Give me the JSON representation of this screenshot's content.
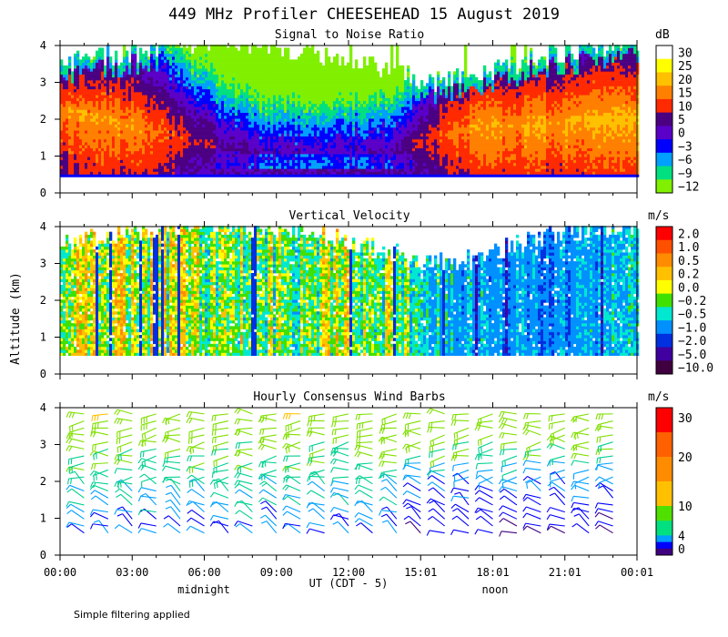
{
  "figure": {
    "title": "449 MHz Profiler CHEESEHEAD 15 August 2019",
    "y_axis_label": "Altitude (km)",
    "x_axis_label": "UT  (CDT - 5)",
    "day_labels": [
      "midnight",
      "noon"
    ],
    "footnote": "Simple filtering applied"
  },
  "chart_data": [
    {
      "type": "heatmap",
      "title": "Signal to Noise Ratio",
      "units": "dB",
      "x_tick_labels": [
        "00:00",
        "03:00",
        "06:00",
        "09:00",
        "12:00",
        "15:01",
        "18:01",
        "21:01",
        "00:01"
      ],
      "xlim_hours": [
        0,
        24
      ],
      "y_tick_labels": [
        "0",
        "1",
        "2",
        "3",
        "4"
      ],
      "ylim_km": [
        0,
        4
      ],
      "colorbar": {
        "labels": [
          "30",
          "25",
          "20",
          "15",
          "10",
          "5",
          "0",
          "−3",
          "−6",
          "−9",
          "−12"
        ],
        "colors": [
          "#ffffff",
          "#ffff00",
          "#ffc000",
          "#ff8000",
          "#ff2a00",
          "#4b0082",
          "#5a00c8",
          "#0000ff",
          "#00a0ff",
          "#00e080",
          "#80f000"
        ]
      },
      "lowest_gate_km": 0.5,
      "top_of_echo_km": [
        3.5,
        3.6,
        3.7,
        3.8,
        3.9,
        4.0,
        4.0,
        4.0,
        3.9,
        3.9,
        3.8,
        3.7,
        3.6,
        3.4,
        3.2,
        3.0,
        3.0,
        3.1,
        3.3,
        3.5,
        3.7,
        3.8,
        3.9,
        4.0,
        4.0
      ],
      "high_snr_layer_km": [
        2.3,
        2.2,
        2.0,
        1.8,
        1.6,
        1.4,
        1.2,
        1.1,
        1.0,
        1.0,
        1.0,
        1.0,
        1.0,
        1.0,
        1.0,
        1.2,
        1.6,
        1.8,
        1.8,
        1.8,
        1.9,
        2.0,
        2.1,
        2.1,
        2.1
      ],
      "high_snr_value_db": [
        12,
        14,
        15,
        15,
        13,
        10,
        7,
        4,
        2,
        1,
        1,
        1,
        1,
        2,
        3,
        8,
        13,
        15,
        16,
        16,
        16,
        16,
        16,
        17,
        18
      ]
    },
    {
      "type": "heatmap",
      "title": "Vertical Velocity",
      "units": "m/s",
      "x_tick_labels": [
        "00:00",
        "03:00",
        "06:00",
        "09:00",
        "12:00",
        "15:01",
        "18:01",
        "21:01",
        "00:01"
      ],
      "xlim_hours": [
        0,
        24
      ],
      "y_tick_labels": [
        "0",
        "1",
        "2",
        "3",
        "4"
      ],
      "ylim_km": [
        0,
        4
      ],
      "colorbar": {
        "labels": [
          "2.0",
          "1.0",
          "0.5",
          "0.2",
          "0.0",
          "−0.2",
          "−0.5",
          "−1.0",
          "−2.0",
          "−5.0",
          "−10.0"
        ],
        "colors": [
          "#ff0000",
          "#ff5000",
          "#ff8c00",
          "#ffc000",
          "#ffff00",
          "#40e000",
          "#00e8d0",
          "#0090ff",
          "#0030e0",
          "#4000a0",
          "#400040"
        ]
      },
      "mean_velocity_ms": [
        0.0,
        0.0,
        0.0,
        0.0,
        -0.1,
        -0.1,
        -0.2,
        -0.3,
        -0.3,
        -0.3,
        -0.2,
        -0.2,
        -0.2,
        -0.3,
        -0.3,
        -0.5,
        -0.8,
        -1.0,
        -1.0,
        -1.0,
        -1.2,
        -1.2,
        -1.0,
        -0.8,
        -0.8
      ]
    },
    {
      "type": "wind_barbs",
      "title": "Hourly Consensus Wind Barbs",
      "units": "m/s",
      "x_tick_labels": [
        "00:00",
        "03:00",
        "06:00",
        "09:00",
        "12:00",
        "15:01",
        "18:01",
        "21:01",
        "00:01"
      ],
      "xlim_hours": [
        0,
        24
      ],
      "y_tick_labels": [
        "0",
        "1",
        "2",
        "3",
        "4"
      ],
      "ylim_km": [
        0,
        4
      ],
      "colorbar": {
        "labels": [
          "30",
          "20",
          "10",
          "4",
          "0"
        ],
        "bands": [
          {
            "range": [
              20,
              30
            ],
            "colors": [
              "#ff0000",
              "#ff6000"
            ]
          },
          {
            "range": [
              10,
              20
            ],
            "colors": [
              "#ff8c00",
              "#ffc000"
            ]
          },
          {
            "range": [
              4,
              10
            ],
            "colors": [
              "#50e000",
              "#00e080"
            ]
          },
          {
            "range": [
              0,
              4
            ],
            "colors": [
              "#00a0ff",
              "#0000ff",
              "#400080"
            ]
          }
        ]
      },
      "barb_hours_utc": [
        1,
        2,
        3,
        4,
        5,
        6,
        7,
        8,
        9,
        10,
        11,
        12,
        13,
        14,
        15,
        16,
        17,
        18,
        19,
        20,
        21,
        22,
        23
      ],
      "wind_direction_deg_low_levels": 300,
      "wind_direction_deg_upper_levels": 270
    }
  ]
}
